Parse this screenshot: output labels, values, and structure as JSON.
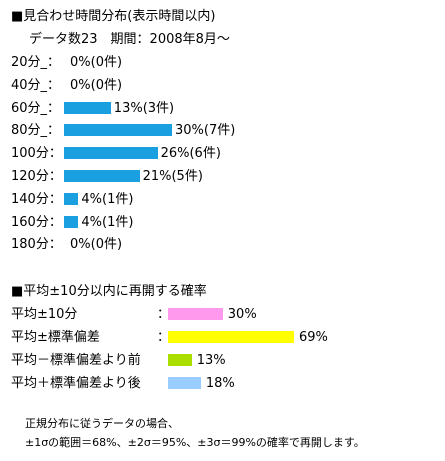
{
  "section1": {
    "title": "■見合わせ時間分布(表示時間以内)",
    "meta": "データ数23　期間：2008年8月～",
    "bar_color": "#1aa0e0"
  },
  "section2": {
    "title": "■平均±10分以内に再開する確率"
  },
  "footnote": {
    "line1": "正規分布に従うデータの場合、",
    "line2": "±1σの範囲＝68%、±2σ＝95%、±3σ＝99%の確率で再開します。"
  },
  "chart_data": [
    {
      "type": "bar",
      "orientation": "horizontal",
      "title": "■見合わせ時間分布(表示時間以内)",
      "categories": [
        "20分_：",
        "40分_：",
        "60分_：",
        "80分_：",
        "100分：",
        "120分：",
        "140分：",
        "160分：",
        "180分："
      ],
      "values": [
        0,
        0,
        13,
        30,
        26,
        21,
        4,
        4,
        0
      ],
      "counts": [
        0,
        0,
        3,
        7,
        6,
        5,
        1,
        1,
        0
      ],
      "labels": [
        "0%(0件)",
        "0%(0件)",
        "13%(3件)",
        "30%(7件)",
        "26%(6件)",
        "21%(5件)",
        "4%(1件)",
        "4%(1件)",
        "0%(0件)"
      ],
      "unit": "%",
      "colors": [
        "#1aa0e0"
      ]
    },
    {
      "type": "bar",
      "orientation": "horizontal",
      "title": "■平均±10分以内に再開する確率",
      "categories": [
        "平均±10分",
        "平均±標準偏差",
        "平均－標準偏差より前",
        "平均＋標準偏差より後"
      ],
      "separator": "：",
      "values": [
        30,
        69,
        13,
        18
      ],
      "labels": [
        "30%",
        "69%",
        "13%",
        "18%"
      ],
      "unit": "%",
      "colors": [
        "#ff99ee",
        "#ffff00",
        "#aadd00",
        "#99ccff"
      ]
    }
  ]
}
